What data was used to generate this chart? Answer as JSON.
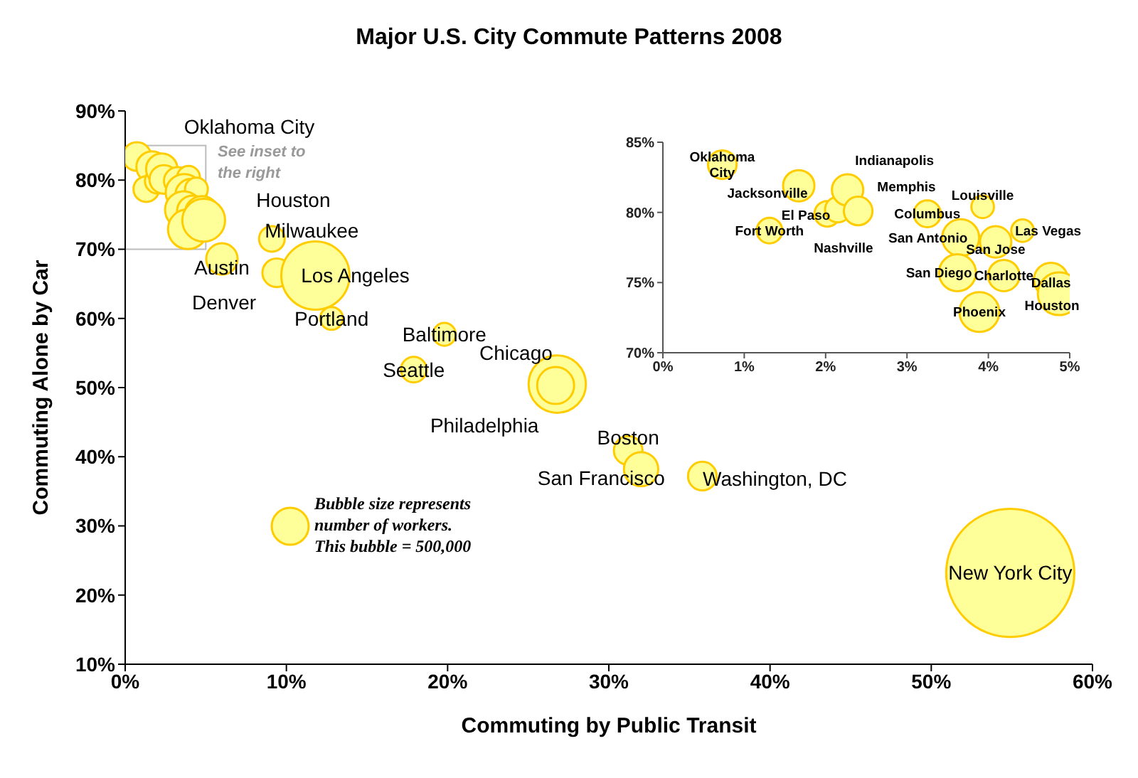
{
  "chart_data": [
    {
      "type": "bubble",
      "title": "Major U.S. City Commute Patterns 2008",
      "xlabel": "Commuting by Public Transit",
      "ylabel": "Commuting Alone by Car",
      "x": [
        0.73,
        1.67,
        1.31,
        2.02,
        2.27,
        2.4,
        3.25,
        3.93,
        3.66,
        4.09,
        4.42,
        3.62,
        4.19,
        3.89,
        4.77,
        4.87,
        9.1,
        6.0,
        9.4,
        11.8,
        12.8,
        19.8,
        17.9,
        26.8,
        26.7,
        31.2,
        32.0,
        35.8,
        54.9
      ],
      "series": [
        {
          "color": "#ffff99",
          "values": [
            83.4,
            81.9,
            78.7,
            79.9,
            81.6,
            80.1,
            79.9,
            80.4,
            78.2,
            77.9,
            78.7,
            75.7,
            75.5,
            72.9,
            75.2,
            74.2,
            71.5,
            68.6,
            66.6,
            66.2,
            60.0,
            57.7,
            52.6,
            50.5,
            50.3,
            40.9,
            38.2,
            37.2,
            23.2
          ],
          "sizes": [
            300000,
            360000,
            240000,
            240000,
            360000,
            300000,
            270000,
            190000,
            500000,
            360000,
            190000,
            500000,
            360000,
            580000,
            430000,
            670000,
            240000,
            360000,
            300000,
            1700000,
            190000,
            190000,
            240000,
            1200000,
            500000,
            300000,
            430000,
            300000,
            6000000
          ]
        }
      ],
      "size_legend": [
        {
          "value": 500000,
          "label": "This bubble = 500,000"
        }
      ],
      "xlim": [
        0,
        60
      ],
      "xticks": [
        {
          "value": 0,
          "label": "0%"
        },
        {
          "value": 10,
          "label": "10%"
        },
        {
          "value": 20,
          "label": "20%"
        },
        {
          "value": 30,
          "label": "30%"
        },
        {
          "value": 40,
          "label": "40%"
        },
        {
          "value": 50,
          "label": "50%"
        },
        {
          "value": 60,
          "label": "60%"
        }
      ],
      "ylim": [
        10,
        90
      ],
      "yticks": [
        {
          "value": 10,
          "label": "10%"
        },
        {
          "value": 20,
          "label": "20%"
        },
        {
          "value": 30,
          "label": "30%"
        },
        {
          "value": 40,
          "label": "40%"
        },
        {
          "value": 50,
          "label": "50%"
        },
        {
          "value": 60,
          "label": "60%"
        },
        {
          "value": 70,
          "label": "70%"
        },
        {
          "value": 80,
          "label": "80%"
        },
        {
          "value": 90,
          "label": "90%"
        }
      ],
      "grid": false,
      "legend": false,
      "annotations": [
        {
          "text": "Oklahoma City",
          "x": 0.73,
          "y": 83.4
        },
        {
          "text": "Houston",
          "x": 4.87,
          "y": 74.2
        },
        {
          "text": "Milwaukee",
          "x": 9.1,
          "y": 71.5
        },
        {
          "text": "Austin",
          "x": 6.0,
          "y": 68.6
        },
        {
          "text": "Denver",
          "x": 9.4,
          "y": 66.6
        },
        {
          "text": "Los Angeles",
          "x": 11.8,
          "y": 66.2
        },
        {
          "text": "Portland",
          "x": 12.8,
          "y": 60.0
        },
        {
          "text": "Baltimore",
          "x": 19.8,
          "y": 57.7
        },
        {
          "text": "Seattle",
          "x": 17.9,
          "y": 52.6
        },
        {
          "text": "Chicago",
          "x": 26.8,
          "y": 50.5
        },
        {
          "text": "Philadelphia",
          "x": 26.7,
          "y": 50.3
        },
        {
          "text": "Boston",
          "x": 31.2,
          "y": 40.9
        },
        {
          "text": "San Francisco",
          "x": 32.0,
          "y": 38.2
        },
        {
          "text": "Washington, DC",
          "x": 35.8,
          "y": 37.2
        },
        {
          "text": "New York City",
          "x": 54.9,
          "y": 23.2
        },
        "See inset to the right",
        "Bubble size represents number of workers."
      ]
    },
    {
      "type": "bubble",
      "x": [
        0.73,
        1.67,
        1.31,
        2.02,
        2.15,
        2.27,
        2.4,
        3.25,
        3.93,
        3.66,
        4.09,
        4.42,
        3.62,
        4.19,
        3.89,
        4.77,
        4.87
      ],
      "series": [
        {
          "color": "#ffff99",
          "values": [
            83.4,
            81.9,
            78.7,
            79.9,
            80.2,
            81.6,
            80.1,
            79.9,
            80.4,
            78.2,
            77.9,
            78.7,
            75.7,
            75.5,
            72.9,
            75.2,
            74.2
          ],
          "sizes": [
            0.45,
            0.54,
            0.36,
            0.36,
            0.36,
            0.54,
            0.45,
            0.4,
            0.28,
            0.75,
            0.54,
            0.28,
            0.75,
            0.54,
            0.87,
            0.64,
            1
          ]
        }
      ],
      "xlim": [
        0,
        5
      ],
      "xticks": [
        {
          "value": 0,
          "label": "0%"
        },
        {
          "value": 1,
          "label": "1%"
        },
        {
          "value": 2,
          "label": "2%"
        },
        {
          "value": 3,
          "label": "3%"
        },
        {
          "value": 4,
          "label": "4%"
        },
        {
          "value": 5,
          "label": "5%"
        }
      ],
      "ylim": [
        70,
        85
      ],
      "yticks": [
        {
          "value": 70,
          "label": "70%"
        },
        {
          "value": 75,
          "label": "75%"
        },
        {
          "value": 80,
          "label": "80%"
        },
        {
          "value": 85,
          "label": "85%"
        }
      ],
      "grid": false,
      "legend": false,
      "annotations": [
        {
          "text": "Oklahoma City",
          "x": 0.73,
          "y": 83.4
        },
        {
          "text": "Jacksonville",
          "x": 1.67,
          "y": 81.9
        },
        {
          "text": "Indianapolis",
          "x": 2.27,
          "y": 81.6
        },
        {
          "text": "Memphis",
          "x": 2.4,
          "y": 80.1
        },
        {
          "text": "El Paso",
          "x": 2.02,
          "y": 79.9
        },
        {
          "text": "Nashville",
          "x": 2.15,
          "y": 80.2
        },
        {
          "text": "Fort Worth",
          "x": 1.31,
          "y": 78.7
        },
        {
          "text": "Columbus",
          "x": 3.25,
          "y": 79.9
        },
        {
          "text": "Louisville",
          "x": 3.93,
          "y": 80.4
        },
        {
          "text": "Las Vegas",
          "x": 4.42,
          "y": 78.7
        },
        {
          "text": "San Antonio",
          "x": 3.66,
          "y": 78.2
        },
        {
          "text": "San Jose",
          "x": 4.09,
          "y": 77.9
        },
        {
          "text": "San Diego",
          "x": 3.62,
          "y": 75.7
        },
        {
          "text": "Charlotte",
          "x": 4.19,
          "y": 75.5
        },
        {
          "text": "Phoenix",
          "x": 3.89,
          "y": 72.9
        },
        {
          "text": "Dallas",
          "x": 4.77,
          "y": 75.2
        },
        {
          "text": "Houston",
          "x": 4.87,
          "y": 74.2
        }
      ]
    }
  ]
}
